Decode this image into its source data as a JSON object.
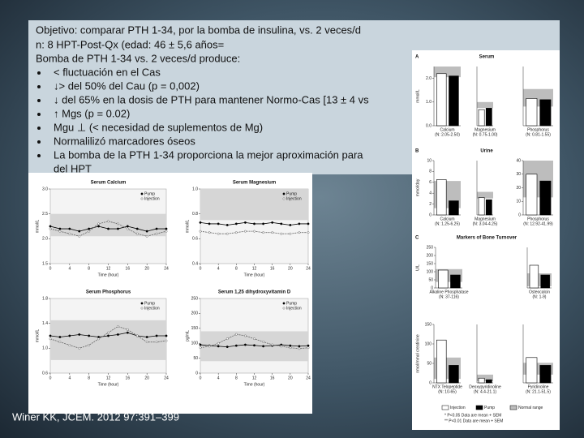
{
  "slide": {
    "lines": [
      "Objetivo: comparar PTH 1-34, por la bomba de insulina, vs. 2 veces/d",
      "n: 8 HPT-Post-Qx (edad: 46 ± 5,6 años=",
      "Bomba de PTH 1-34  vs. 2 veces/d produce:"
    ],
    "bullets": [
      "< fluctuación en el Cas",
      "↓> del 50%  del Cau (p = 0,002)",
      "↓ del 65%  en la dosis de PTH para mantener Normo-Cas [13 ± 4 vs",
      "↑ Mgs (p = 0.02)",
      "Mgu ⊥ (< necesidad de suplementos de Mg)",
      "Normalilizó marcadores óseos",
      "La bomba de la PTH 1-34 proporciona la mejor aproximación para"
    ],
    "bullet_continuation": "del  HPT",
    "citation": "Winer KK, JCEM. 2012 97:391–399"
  },
  "left_figure": {
    "x_label": "Time (hour)",
    "charts": [
      {
        "title": "Serum Calcium",
        "y_label": "mmol/L",
        "xlim": [
          0,
          24
        ],
        "xticks": [
          0,
          4,
          8,
          12,
          16,
          20,
          24
        ],
        "ylim": [
          1.5,
          3
        ],
        "yticks": [
          1.5,
          {
            "value": 2,
            "label": "2.0"
          },
          2.5,
          {
            "value": 3,
            "label": "3.0"
          }
        ],
        "normal_range": [
          2.05,
          2.5
        ],
        "x": [
          0,
          2,
          4,
          6,
          8,
          10,
          12,
          14,
          16,
          18,
          20,
          22,
          24
        ],
        "series": [
          {
            "name": "Pump",
            "color": "#000000",
            "values": [
              2.25,
              2.2,
              2.2,
              2.15,
              2.2,
              2.25,
              2.2,
              2.2,
              2.25,
              2.2,
              2.15,
              2.2,
              2.2
            ]
          },
          {
            "name": "Injection",
            "color": "#666666",
            "values": [
              2.2,
              2.15,
              2.1,
              2.05,
              2.15,
              2.3,
              2.35,
              2.3,
              2.2,
              2.1,
              2.05,
              2.1,
              2.15
            ]
          }
        ]
      },
      {
        "title": "Serum Magnesium",
        "y_label": "mmol/L",
        "xlim": [
          0,
          24
        ],
        "xticks": [
          0,
          4,
          8,
          12,
          16,
          20,
          24
        ],
        "ylim": [
          0.4,
          1
        ],
        "yticks": [
          0.4,
          0.6,
          0.8,
          {
            "value": 1,
            "label": "1.0"
          }
        ],
        "normal_range": [
          0.75,
          1
        ],
        "x": [
          0,
          2,
          4,
          6,
          8,
          10,
          12,
          14,
          16,
          18,
          20,
          22,
          24
        ],
        "series": [
          {
            "name": "Pump",
            "color": "#000000",
            "values": [
              0.73,
              0.72,
              0.72,
              0.71,
              0.72,
              0.73,
              0.72,
              0.72,
              0.73,
              0.72,
              0.71,
              0.72,
              0.72
            ]
          },
          {
            "name": "Injection",
            "color": "#666666",
            "values": [
              0.66,
              0.65,
              0.64,
              0.64,
              0.65,
              0.66,
              0.66,
              0.65,
              0.65,
              0.64,
              0.64,
              0.65,
              0.65
            ]
          }
        ]
      },
      {
        "title": "Serum Phosphorus",
        "y_label": "mmol/L",
        "xlim": [
          0,
          24
        ],
        "xticks": [
          0,
          4,
          8,
          12,
          16,
          20,
          24
        ],
        "ylim": [
          0.6,
          1.8
        ],
        "yticks": [
          0.6,
          {
            "value": 1,
            "label": "1.0"
          },
          1.4,
          1.8
        ],
        "normal_range": [
          0.81,
          1.45
        ],
        "x": [
          0,
          2,
          4,
          6,
          8,
          10,
          12,
          14,
          16,
          18,
          20,
          22,
          24
        ],
        "series": [
          {
            "name": "Pump",
            "color": "#000000",
            "values": [
              1.2,
              1.18,
              1.2,
              1.22,
              1.2,
              1.18,
              1.2,
              1.22,
              1.25,
              1.2,
              1.18,
              1.2,
              1.2
            ]
          },
          {
            "name": "Injection",
            "color": "#666666",
            "values": [
              1.15,
              1.1,
              1.05,
              1.0,
              1.05,
              1.15,
              1.25,
              1.35,
              1.3,
              1.2,
              1.1,
              1.1,
              1.12
            ]
          }
        ]
      },
      {
        "title": "Serum 1,25 dihydroxyvitamin D",
        "y_label": "pg/mL",
        "xlim": [
          0,
          24
        ],
        "xticks": [
          0,
          4,
          8,
          12,
          16,
          20,
          24
        ],
        "ylim": [
          0,
          250
        ],
        "yticks": [
          0,
          50,
          100,
          150,
          200,
          250
        ],
        "normal_range": [
          40,
          140
        ],
        "x": [
          0,
          2,
          4,
          6,
          8,
          10,
          12,
          14,
          16,
          18,
          20,
          22,
          24
        ],
        "series": [
          {
            "name": "Pump",
            "color": "#000000",
            "values": [
              95,
              92,
              90,
              88,
              92,
              95,
              93,
              90,
              92,
              95,
              92,
              90,
              92
            ]
          },
          {
            "name": "Injection",
            "color": "#666666",
            "values": [
              85,
              90,
              100,
              115,
              130,
              125,
              115,
              105,
              95,
              90,
              85,
              82,
              85
            ]
          }
        ]
      }
    ]
  },
  "right_figure": {
    "panels": [
      {
        "letter": "A",
        "title": "Serum",
        "y_label": "mmol/L",
        "charts": [
          {
            "label": "Calcium",
            "range": "(N: 2.05-2.50)",
            "ylim": [
              0,
              2.5
            ],
            "yticks": [
              {
                "value": 0,
                "label": "0.0"
              },
              {
                "value": 1,
                "label": "1.0"
              },
              {
                "value": 2,
                "label": "2.0"
              }
            ],
            "normal_range": [
              2.05,
              2.5
            ],
            "values": [
              2.2,
              2.1
            ]
          },
          {
            "label": "Magnesium",
            "range": "(N: 0.75-1.00)",
            "ylim": [
              0,
              2.5
            ],
            "normal_range": [
              0.75,
              1
            ],
            "values": [
              0.68,
              0.74
            ]
          },
          {
            "label": "Phosphorus",
            "range": "(N: 0.81-1.55)",
            "ylim": [
              0,
              2.5
            ],
            "normal_range": [
              0.81,
              1.55
            ],
            "values": [
              1.15,
              1.1
            ]
          }
        ]
      },
      {
        "letter": "B",
        "title": "Urine",
        "y_label": "mmol/day",
        "charts": [
          {
            "label": "Calcium",
            "range": "(N: 1.25-6.25)",
            "ylim": [
              0,
              10
            ],
            "yticks": [
              0,
              2,
              4,
              6,
              8,
              10
            ],
            "normal_range": [
              1.25,
              6.25
            ],
            "values": [
              6.5,
              2.6
            ]
          },
          {
            "label": "Magnesium",
            "range": "(N: 3.04-4.25)",
            "ylim": [
              0,
              10
            ],
            "normal_range": [
              3.04,
              4.25
            ],
            "values": [
              3.2,
              2.8
            ]
          },
          {
            "label": "Phosphorus",
            "range": "(N: 12.92-41.99)",
            "ylim": [
              0,
              40
            ],
            "yticks": [
              0,
              10,
              20,
              30,
              40
            ],
            "normal_range": [
              12.92,
              41.99
            ],
            "values": [
              30,
              25
            ]
          }
        ]
      },
      {
        "letter": "C",
        "title": "Markers of Bone Turnover",
        "y_label": "U/L",
        "charts": [
          {
            "label": "Alkaline Phosphatase",
            "range": "(N: 37-116)",
            "ylim": [
              0,
              250
            ],
            "yticks": [
              0,
              50,
              100,
              150,
              200,
              250
            ],
            "normal_range": [
              37,
              116
            ],
            "values": [
              110,
              80
            ]
          },
          {
            "label": "Osteocalcin",
            "range": "(N: 1-9)",
            "ylim": [
              0,
              25
            ],
            "normal_range": [
              1,
              9
            ],
            "values": [
              14,
              8
            ]
          }
        ]
      },
      {
        "y_label": "nmol/mmol creatinine",
        "charts": [
          {
            "label": "NTX Telopeptide",
            "range": "(N: 10-65)",
            "ylim": [
              0,
              150
            ],
            "yticks": [
              0,
              50,
              100,
              150
            ],
            "normal_range": [
              10,
              65
            ],
            "values": [
              110,
              45
            ]
          },
          {
            "label": "Deoxypyridinoline",
            "range": "(N: 4.4-21.1)",
            "ylim": [
              0,
              150
            ],
            "normal_range": [
              4.4,
              21.1
            ],
            "values": [
              12,
              8
            ]
          },
          {
            "label": "Pyridinoline",
            "range": "(N: 21.1-51.5)",
            "ylim": [
              0,
              150
            ],
            "normal_range": [
              21.1,
              51.5
            ],
            "values": [
              65,
              45
            ]
          }
        ]
      }
    ],
    "legend": [
      "Injection",
      "Pump",
      "Normal range"
    ],
    "notes": [
      "* P<0.05 Data are mean + SEM",
      "** P<0.01 Data are mean + SEM"
    ]
  }
}
